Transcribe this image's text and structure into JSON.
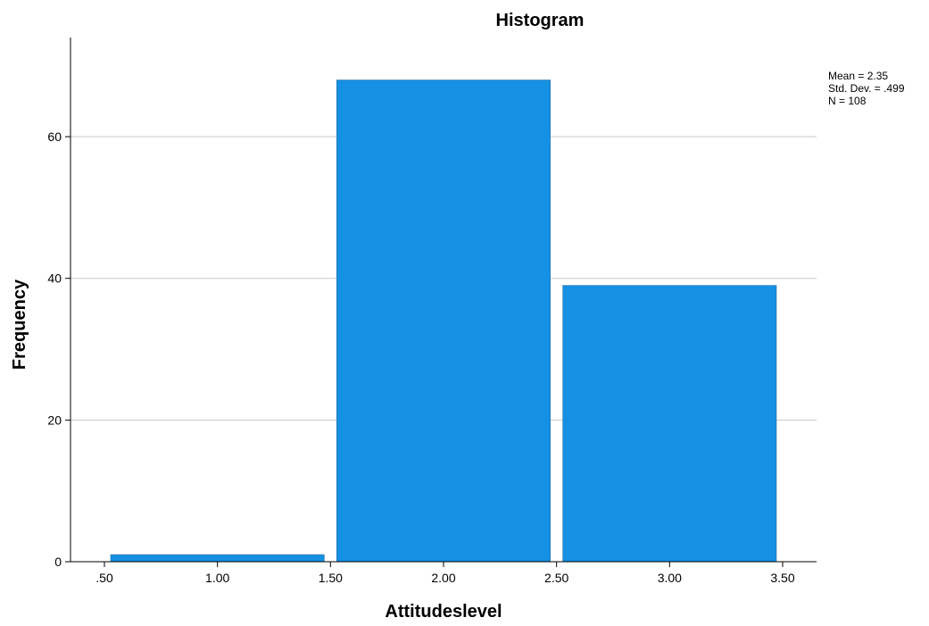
{
  "chart_data": {
    "type": "bar",
    "title": "Histogram",
    "xlabel": "Attitudeslevel",
    "ylabel": "Frequency",
    "x_ticks": [
      0.5,
      1.0,
      1.5,
      2.0,
      2.5,
      3.0,
      3.5
    ],
    "x_tick_labels": [
      ".50",
      "1.00",
      "1.50",
      "2.00",
      "2.50",
      "3.00",
      "3.50"
    ],
    "y_ticks": [
      0,
      20,
      40,
      60
    ],
    "y_tick_labels": [
      "0",
      "20",
      "40",
      "60"
    ],
    "xlim": [
      0.35,
      3.65
    ],
    "ylim": [
      0,
      74
    ],
    "bins": [
      {
        "start": 0.5,
        "end": 1.5,
        "value": 1
      },
      {
        "start": 1.5,
        "end": 2.5,
        "value": 68
      },
      {
        "start": 2.5,
        "end": 3.5,
        "value": 39
      }
    ],
    "grid": "horizontal",
    "bar_color": "#1590e3",
    "stats": [
      "Mean = 2.35",
      "Std. Dev. = .499",
      "N = 108"
    ],
    "legend_position": "top-right"
  }
}
